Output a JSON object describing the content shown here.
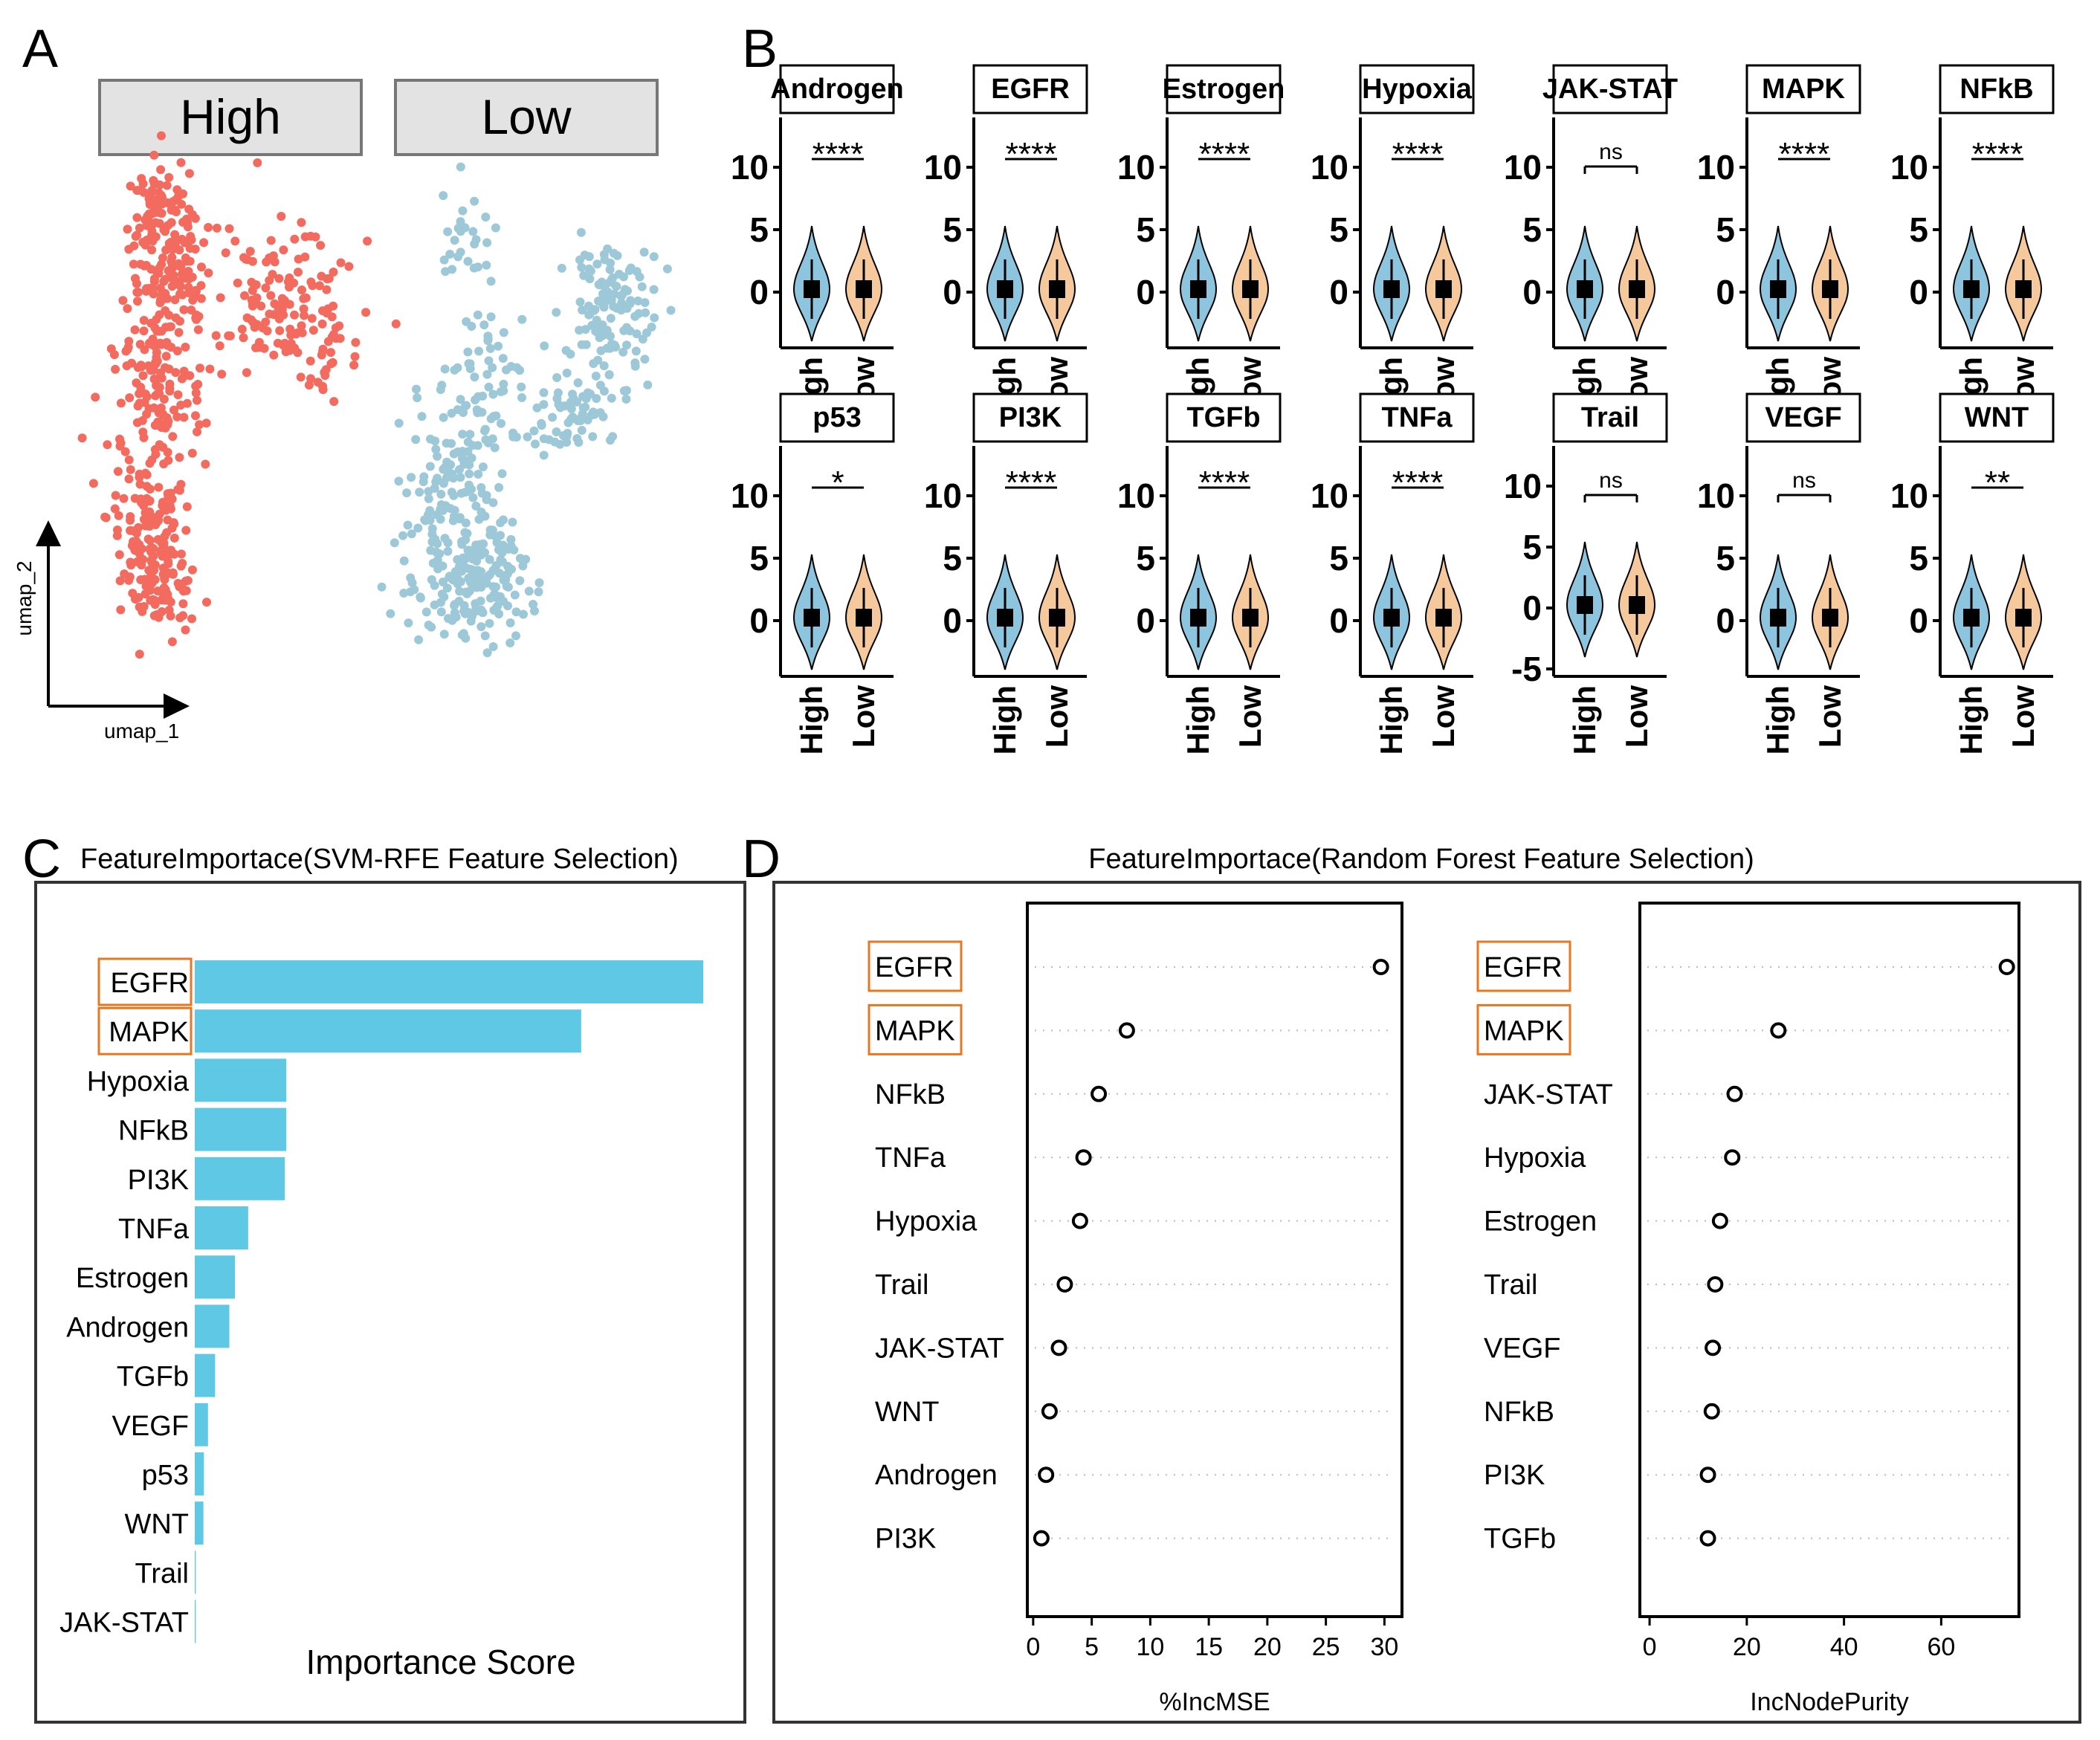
{
  "panels": {
    "A": "A",
    "B": "B",
    "C": "C",
    "D": "D"
  },
  "umap": {
    "strips": [
      "High",
      "Low"
    ],
    "x_axis_label": "umap_1",
    "y_axis_label": "umap_2",
    "colors": {
      "High": "#f26b5e",
      "Low": "#9dc8d8"
    }
  },
  "violins": {
    "group_labels": [
      "High",
      "Low"
    ],
    "colors": {
      "High": "#8ec5de",
      "Low": "#f6c99c"
    },
    "row1": [
      {
        "name": "Androgen",
        "sig": "****",
        "yticks": [
          "10",
          "5",
          "0"
        ]
      },
      {
        "name": "EGFR",
        "sig": "****",
        "yticks": [
          "10",
          "5",
          "0"
        ]
      },
      {
        "name": "Estrogen",
        "sig": "****",
        "yticks": [
          "10",
          "5",
          "0"
        ]
      },
      {
        "name": "Hypoxia",
        "sig": "****",
        "yticks": [
          "10",
          "5",
          "0"
        ]
      },
      {
        "name": "JAK-STAT",
        "sig": "ns",
        "yticks": [
          "10",
          "5",
          "0"
        ]
      },
      {
        "name": "MAPK",
        "sig": "****",
        "yticks": [
          "10",
          "5",
          "0"
        ]
      },
      {
        "name": "NFkB",
        "sig": "****",
        "yticks": [
          "10",
          "5",
          "0"
        ]
      }
    ],
    "row2": [
      {
        "name": "p53",
        "sig": "*",
        "yticks": [
          "10",
          "5",
          "0"
        ]
      },
      {
        "name": "PI3K",
        "sig": "****",
        "yticks": [
          "10",
          "5",
          "0"
        ]
      },
      {
        "name": "TGFb",
        "sig": "****",
        "yticks": [
          "10",
          "5",
          "0"
        ]
      },
      {
        "name": "TNFa",
        "sig": "****",
        "yticks": [
          "10",
          "5",
          "0"
        ]
      },
      {
        "name": "Trail",
        "sig": "ns",
        "yticks": [
          "10",
          "5",
          "0",
          "-5"
        ]
      },
      {
        "name": "VEGF",
        "sig": "ns",
        "yticks": [
          "10",
          "5",
          "0"
        ]
      },
      {
        "name": "WNT",
        "sig": "**",
        "yticks": [
          "10",
          "5",
          "0"
        ]
      }
    ]
  },
  "chart_data": [
    {
      "type": "bar",
      "title": "FeatureImportace(SVM-RFE Feature Selection)",
      "xlabel": "Importance Score",
      "ylabel": "",
      "categories": [
        "EGFR",
        "MAPK",
        "Hypoxia",
        "NFkB",
        "PI3K",
        "TNFa",
        "Estrogen",
        "Androgen",
        "TGFb",
        "VEGF",
        "p53",
        "WNT",
        "Trail",
        "JAK-STAT"
      ],
      "values": [
        1.0,
        0.76,
        0.18,
        0.18,
        0.177,
        0.105,
        0.079,
        0.068,
        0.04,
        0.026,
        0.018,
        0.017,
        0.002,
        0.002
      ],
      "highlighted": [
        "EGFR",
        "MAPK"
      ],
      "color": "#5ec8e5"
    },
    {
      "type": "scatter",
      "title": "FeatureImportace(Random Forest Feature Selection)",
      "xlabel": "%IncMSE",
      "categories": [
        "EGFR",
        "MAPK",
        "NFkB",
        "TNFa",
        "Hypoxia",
        "Trail",
        "JAK-STAT",
        "WNT",
        "Androgen",
        "PI3K"
      ],
      "values": [
        29.7,
        8.0,
        5.6,
        4.3,
        4.0,
        2.7,
        2.2,
        1.4,
        1.1,
        0.7
      ],
      "xticks": [
        0,
        5,
        10,
        15,
        20,
        25,
        30
      ],
      "xlim": [
        -0.5,
        31.5
      ],
      "highlighted": [
        "EGFR",
        "MAPK"
      ]
    },
    {
      "type": "scatter",
      "title": "",
      "xlabel": "IncNodePurity",
      "categories": [
        "EGFR",
        "MAPK",
        "JAK-STAT",
        "Hypoxia",
        "Estrogen",
        "Trail",
        "VEGF",
        "NFkB",
        "PI3K",
        "TGFb"
      ],
      "values": [
        73.5,
        26.5,
        17.5,
        17.0,
        14.5,
        13.5,
        13.0,
        12.8,
        12.0,
        12.0
      ],
      "xticks": [
        0,
        20,
        40,
        60
      ],
      "xlim": [
        -2,
        76
      ],
      "highlighted": [
        "EGFR",
        "MAPK"
      ]
    }
  ]
}
